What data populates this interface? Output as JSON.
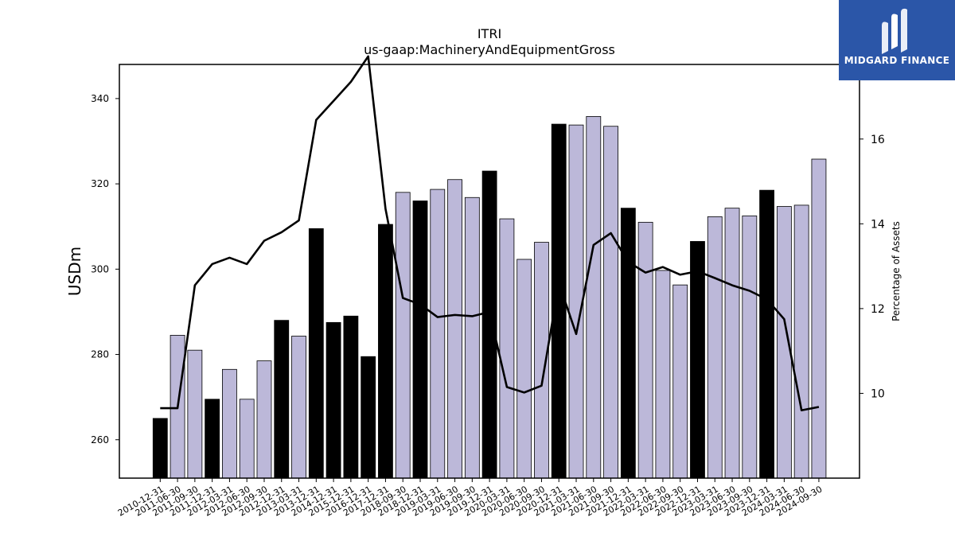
{
  "brand": {
    "name": "MIDGARD FINANCE",
    "color": "#2b56a8"
  },
  "chart_data": {
    "type": "bar",
    "title": "ITRI",
    "subtitle": "us-gaap:MachineryAndEquipmentGross",
    "ylabel": "USDm",
    "y2label": "Percentage of Assets",
    "ylim": [
      251,
      348
    ],
    "y2lim": [
      8.0,
      17.76
    ],
    "yticks": [
      260,
      280,
      300,
      320,
      340
    ],
    "y2ticks": [
      10,
      12,
      14,
      16
    ],
    "colors": {
      "annual_bar": "#000000",
      "quarter_bar": "#bcb8d9",
      "line": "#000000"
    },
    "categories": [
      "2010-12-31",
      "2011-06-30",
      "2011-09-30",
      "2011-12-31",
      "2012-03-31",
      "2012-06-30",
      "2012-09-30",
      "2012-12-31",
      "2013-03-31",
      "2013-12-31",
      "2014-12-31",
      "2015-12-31",
      "2016-12-31",
      "2017-12-31",
      "2018-09-30",
      "2018-12-31",
      "2019-03-31",
      "2019-06-30",
      "2019-09-30",
      "2019-12-31",
      "2020-03-31",
      "2020-06-30",
      "2020-09-30",
      "2020-12-31",
      "2021-03-31",
      "2021-06-30",
      "2021-09-30",
      "2021-12-31",
      "2022-03-31",
      "2022-06-30",
      "2022-09-30",
      "2022-12-31",
      "2023-03-31",
      "2023-06-30",
      "2023-09-30",
      "2023-12-31",
      "2024-03-31",
      "2024-06-30",
      "2024-09-30"
    ],
    "series": [
      {
        "kind": "bar",
        "values": [
          265,
          284.5,
          281,
          269.5,
          276.5,
          269.5,
          278.5,
          288,
          284.3,
          309.5,
          287.5,
          289,
          279.5,
          310.5,
          318,
          316,
          318.7,
          321,
          316.8,
          323,
          311.8,
          302.3,
          306.3,
          334,
          333.8,
          335.8,
          333.5,
          314.3,
          311,
          299.7,
          296.3,
          306.5,
          312.3,
          314.3,
          312.5,
          318.5,
          314.7,
          315,
          325.8
        ],
        "annual": [
          true,
          false,
          false,
          true,
          false,
          false,
          false,
          true,
          false,
          true,
          true,
          true,
          true,
          true,
          false,
          true,
          false,
          false,
          false,
          true,
          false,
          false,
          false,
          true,
          false,
          false,
          false,
          true,
          false,
          false,
          false,
          true,
          false,
          false,
          false,
          true,
          false,
          false,
          false
        ]
      },
      {
        "kind": "line",
        "axis": "right",
        "values": [
          9.65,
          9.65,
          12.55,
          13.05,
          13.2,
          13.05,
          13.6,
          13.8,
          14.08,
          16.45,
          16.9,
          17.35,
          17.95,
          14.35,
          12.25,
          12.1,
          11.8,
          11.85,
          11.82,
          11.92,
          10.15,
          10.02,
          10.18,
          12.6,
          11.4,
          13.5,
          13.78,
          13.1,
          12.85,
          12.98,
          12.8,
          12.88,
          12.72,
          12.55,
          12.42,
          12.22,
          11.75,
          9.6,
          9.68
        ]
      }
    ]
  }
}
